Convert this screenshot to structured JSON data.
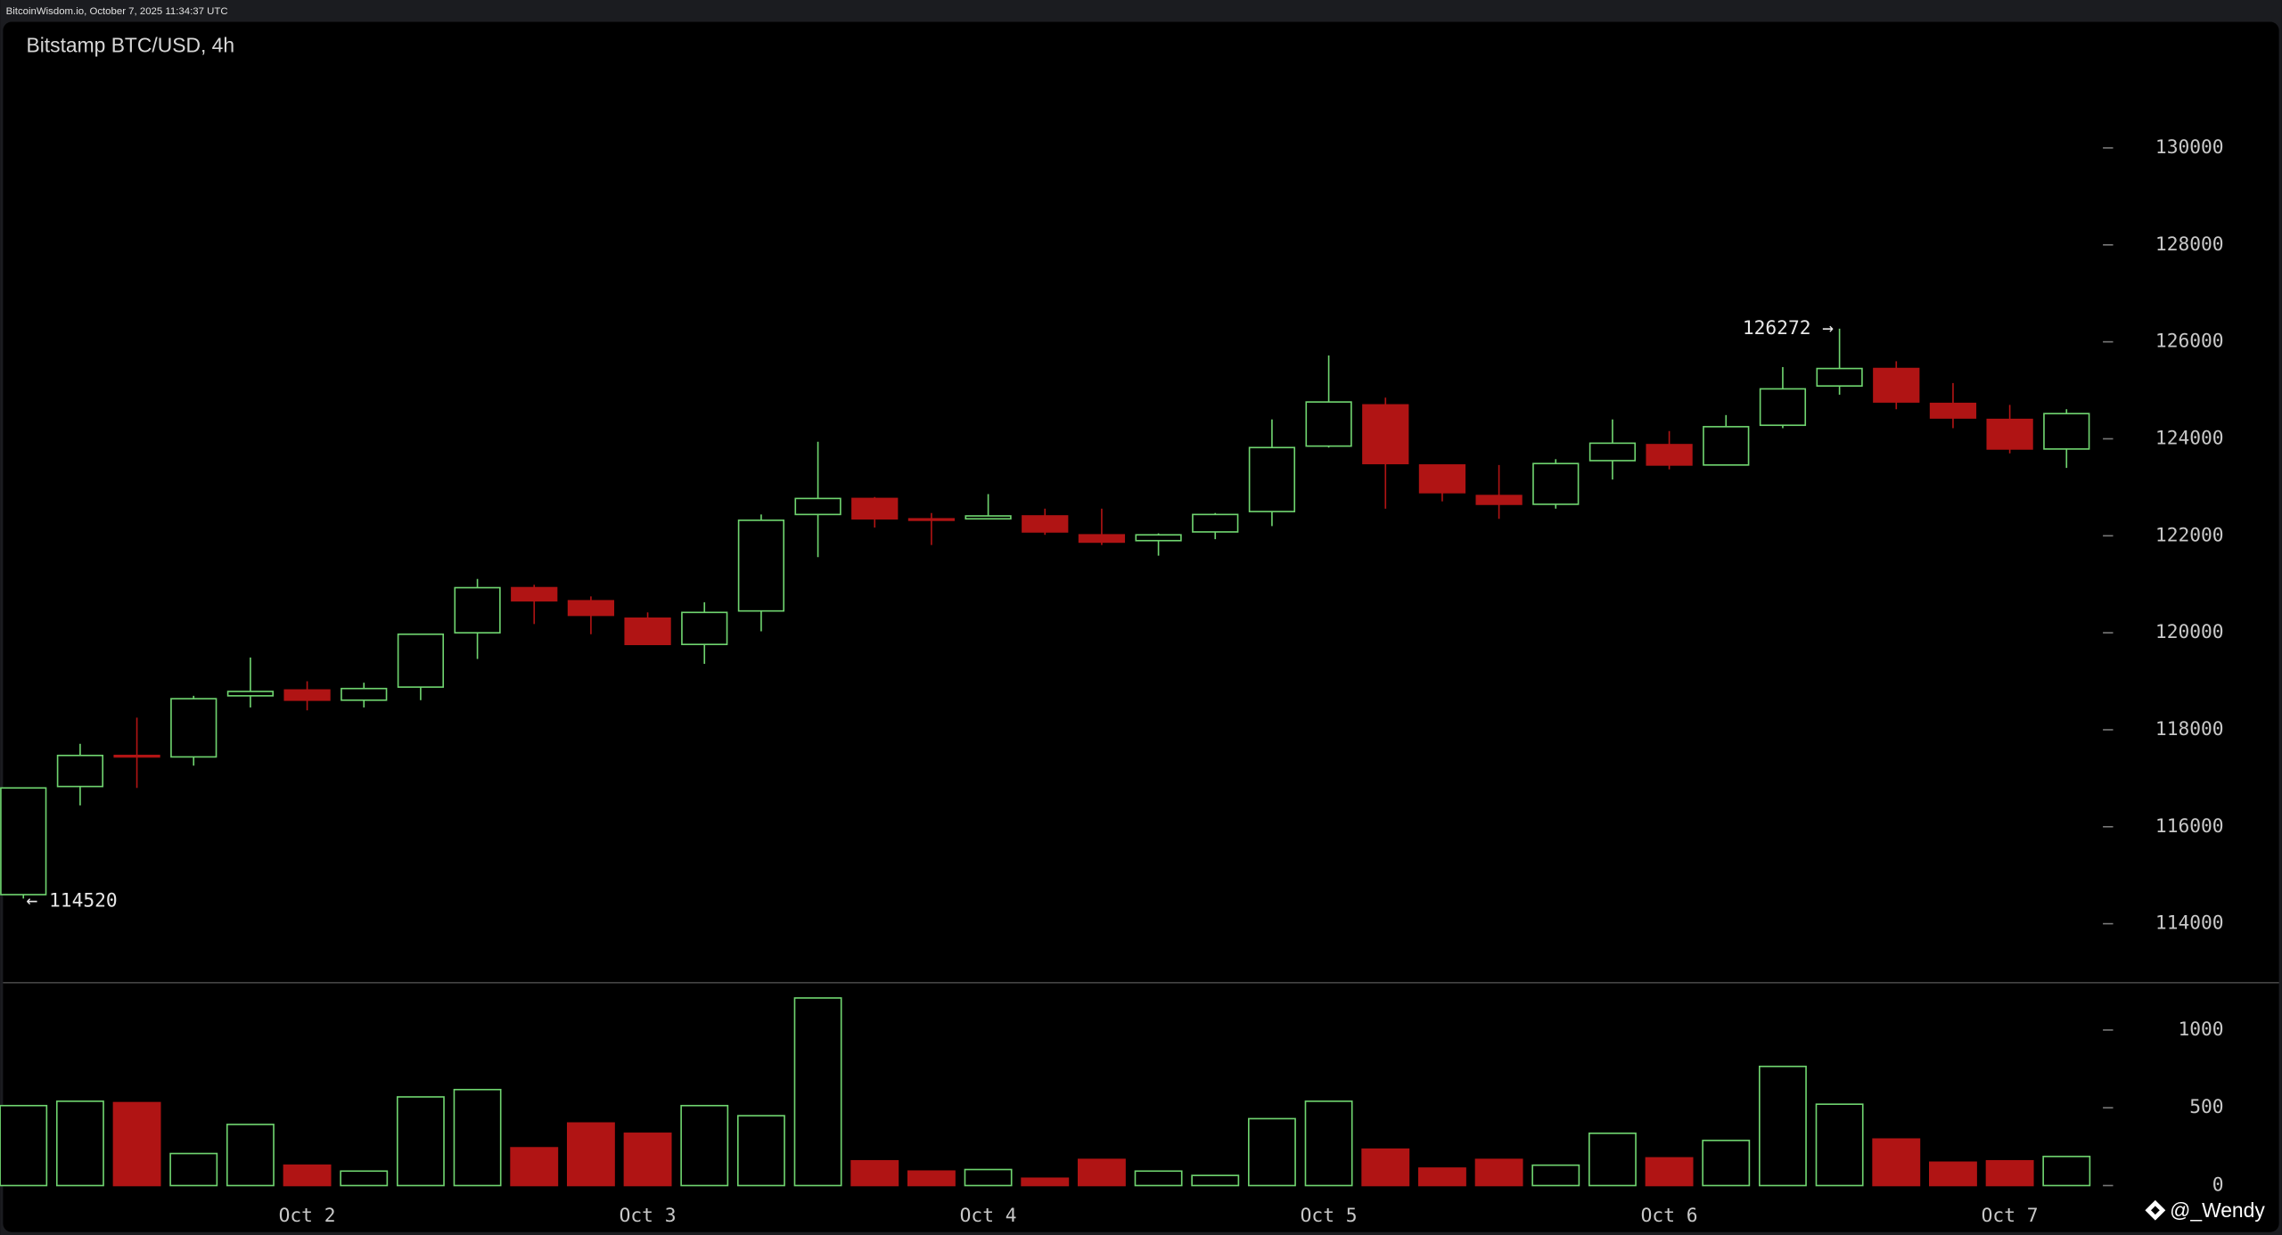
{
  "header": {
    "source": "BitcoinWisdom.io, October 7, 2025 11:34:37 UTC"
  },
  "watermark": "@_Wendy",
  "chart_data": [
    {
      "type": "candlestick",
      "title": "Bitstamp BTC/USD, 4h",
      "categories": [
        null,
        null,
        null,
        null,
        null,
        "Oct 2",
        null,
        null,
        null,
        null,
        null,
        "Oct 3",
        null,
        null,
        null,
        null,
        null,
        "Oct 4",
        null,
        null,
        null,
        null,
        null,
        "Oct 5",
        null,
        null,
        null,
        null,
        null,
        "Oct 6",
        null,
        null,
        null,
        null,
        null,
        "Oct 7",
        null
      ],
      "open": [
        114600,
        116830,
        117470,
        117440,
        118700,
        118820,
        118610,
        118880,
        120000,
        120930,
        120660,
        120300,
        119760,
        120450,
        122440,
        122770,
        122350,
        122350,
        122410,
        122020,
        121900,
        122080,
        122500,
        123850,
        124700,
        123460,
        122830,
        122650,
        123550,
        123880,
        123460,
        124280,
        125090,
        125450,
        124730,
        124400,
        123790
      ],
      "high": [
        116800,
        117710,
        118250,
        118700,
        119490,
        119000,
        118970,
        119970,
        121110,
        120990,
        120750,
        120420,
        120630,
        122440,
        123940,
        122800,
        122470,
        122860,
        122560,
        122560,
        122050,
        122470,
        124400,
        125720,
        124850,
        123460,
        123460,
        123580,
        124400,
        124160,
        124490,
        125480,
        126272,
        125600,
        125150,
        124700,
        124610
      ],
      "low": [
        114520,
        116440,
        116800,
        117260,
        118460,
        118400,
        118460,
        118610,
        119460,
        120180,
        119970,
        119760,
        119360,
        120030,
        121560,
        122170,
        121810,
        122350,
        122020,
        121810,
        121590,
        121930,
        122200,
        123820,
        122560,
        122710,
        122350,
        122560,
        123160,
        123370,
        123460,
        124220,
        124910,
        124610,
        124220,
        123700,
        123400
      ],
      "close": [
        116800,
        117470,
        117450,
        118640,
        118790,
        118610,
        118850,
        119970,
        120930,
        120660,
        120360,
        119760,
        120420,
        122320,
        122770,
        122350,
        122320,
        122410,
        122080,
        121870,
        122020,
        122440,
        123820,
        124760,
        123490,
        122890,
        122650,
        123490,
        123910,
        123460,
        124250,
        125030,
        125450,
        124760,
        124430,
        123790,
        124520
      ],
      "up_color": "#6fd46f",
      "down_color": "#b01414",
      "high_annotation": "126272 →",
      "low_annotation": "← 114520",
      "ylim": [
        112800,
        132600
      ],
      "yticks": [
        114000,
        116000,
        118000,
        120000,
        122000,
        124000,
        126000,
        128000,
        130000
      ]
    },
    {
      "type": "bar",
      "values": [
        514,
        542,
        533,
        206,
        393,
        131,
        93,
        570,
        617,
        243,
        402,
        336,
        514,
        449,
        1206,
        159,
        93,
        103,
        47,
        168,
        93,
        65,
        430,
        542,
        234,
        112,
        168,
        131,
        336,
        178,
        290,
        766,
        523,
        299,
        150,
        159,
        187
      ],
      "ylim": [
        -28,
        1300
      ],
      "yticks": [
        0,
        500,
        1000
      ]
    }
  ]
}
